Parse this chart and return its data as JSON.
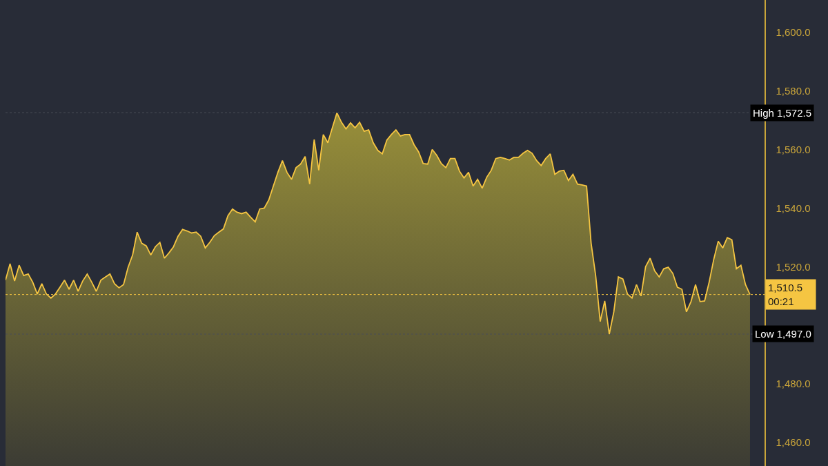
{
  "chart_data": {
    "type": "area",
    "categories": [
      null,
      null,
      null,
      null,
      null,
      null,
      null,
      null,
      null,
      null,
      null,
      null,
      null,
      null,
      null,
      null,
      null,
      null,
      null,
      null,
      null,
      null,
      null,
      null,
      null,
      null,
      null,
      null,
      null,
      null,
      null,
      null,
      null,
      null,
      null,
      null,
      null,
      null,
      null,
      null,
      null,
      null,
      null,
      null,
      null,
      null,
      null,
      null,
      null,
      null,
      null,
      null,
      null,
      null,
      null,
      null,
      null,
      null,
      null,
      null,
      null,
      null,
      null,
      null,
      null,
      null,
      null,
      null,
      null,
      null,
      null,
      null,
      null,
      null,
      null,
      null,
      null,
      null,
      null,
      null,
      null,
      null,
      null,
      null,
      null,
      null,
      null,
      null,
      null,
      null,
      null,
      null,
      null,
      null,
      null,
      null,
      null,
      null,
      null,
      null,
      null,
      null,
      null,
      null,
      null,
      null,
      null,
      null,
      null,
      null,
      null,
      null,
      null,
      null,
      null,
      null,
      null,
      null,
      null,
      null,
      null,
      null,
      null,
      null,
      null,
      null,
      null,
      null,
      null,
      null,
      null,
      null,
      null,
      null,
      null,
      null,
      null,
      null,
      null,
      null,
      null,
      null,
      null,
      null,
      null,
      null,
      null,
      null,
      null,
      null,
      null,
      null,
      null,
      null,
      null,
      null,
      null,
      null,
      null,
      null,
      null,
      null,
      null,
      null,
      null
    ],
    "series": [
      {
        "color": "#f5c542",
        "values": [
          1515.4,
          1521.0,
          1515.1,
          1520.5,
          1517.0,
          1517.5,
          1514.7,
          1510.7,
          1514.2,
          1510.7,
          1509.3,
          1510.7,
          1513.0,
          1515.4,
          1512.3,
          1515.4,
          1511.6,
          1515.1,
          1517.5,
          1514.7,
          1511.6,
          1515.4,
          1516.5,
          1517.5,
          1514.2,
          1512.8,
          1513.9,
          1519.8,
          1524.0,
          1531.8,
          1528.0,
          1527.1,
          1524.0,
          1526.8,
          1528.3,
          1522.9,
          1524.7,
          1526.8,
          1530.4,
          1532.7,
          1532.2,
          1531.5,
          1531.8,
          1530.4,
          1526.4,
          1528.3,
          1530.6,
          1531.8,
          1532.9,
          1537.4,
          1539.7,
          1538.6,
          1538.1,
          1538.6,
          1536.9,
          1535.3,
          1539.7,
          1540.0,
          1542.8,
          1547.5,
          1552.2,
          1556.2,
          1552.2,
          1549.8,
          1553.8,
          1555.0,
          1557.6,
          1548.2,
          1563.4,
          1552.9,
          1565.1,
          1562.3,
          1567.4,
          1572.5,
          1569.3,
          1567.0,
          1569.1,
          1567.4,
          1569.3,
          1566.2,
          1566.7,
          1562.3,
          1559.7,
          1558.5,
          1563.2,
          1565.1,
          1566.7,
          1564.6,
          1565.1,
          1565.1,
          1561.6,
          1559.2,
          1555.2,
          1555.0,
          1560.0,
          1558.0,
          1555.2,
          1553.8,
          1556.9,
          1556.9,
          1552.6,
          1550.3,
          1552.2,
          1547.5,
          1549.8,
          1546.8,
          1550.5,
          1552.9,
          1556.9,
          1557.3,
          1556.9,
          1556.4,
          1557.3,
          1557.3,
          1558.7,
          1559.7,
          1558.7,
          1556.2,
          1554.5,
          1556.9,
          1558.5,
          1551.5,
          1552.6,
          1552.9,
          1549.4,
          1551.5,
          1548.2,
          1547.9,
          1547.5,
          1528.0,
          1517.0,
          1501.3,
          1508.3,
          1497.0,
          1504.6,
          1516.5,
          1515.8,
          1510.7,
          1509.3,
          1513.9,
          1510.0,
          1520.0,
          1522.9,
          1518.6,
          1516.5,
          1519.3,
          1519.8,
          1517.7,
          1513.0,
          1512.3,
          1504.6,
          1508.1,
          1513.9,
          1508.1,
          1508.3,
          1514.7,
          1522.4,
          1528.7,
          1526.4,
          1529.9,
          1529.2,
          1519.3,
          1520.5,
          1513.9,
          1510.5
        ]
      }
    ],
    "ylim": [
      1452,
      1611
    ],
    "yticks": [
      {
        "value": 1460,
        "label": "1,460.0"
      },
      {
        "value": 1480,
        "label": "1,480.0"
      },
      {
        "value": 1520,
        "label": "1,520.0"
      },
      {
        "value": 1540,
        "label": "1,540.0"
      },
      {
        "value": 1560,
        "label": "1,560.0"
      },
      {
        "value": 1580,
        "label": "1,580.0"
      },
      {
        "value": 1600,
        "label": "1,600.0"
      }
    ],
    "tick_labels": "y",
    "grid": false,
    "ref_lines": [
      {
        "axis": "y",
        "value": 1572.5,
        "label": "High 1,572.5",
        "color": "#4a4e58",
        "line_style": "dotted"
      },
      {
        "axis": "y",
        "value": 1497.0,
        "label": "Low 1,497.0",
        "color": "#4a4e58",
        "line_style": "dotted"
      },
      {
        "axis": "y",
        "value": 1510.5,
        "label": "1,510.5\n00:21",
        "color": "#f5c542",
        "line_style": "dotted"
      }
    ]
  }
}
